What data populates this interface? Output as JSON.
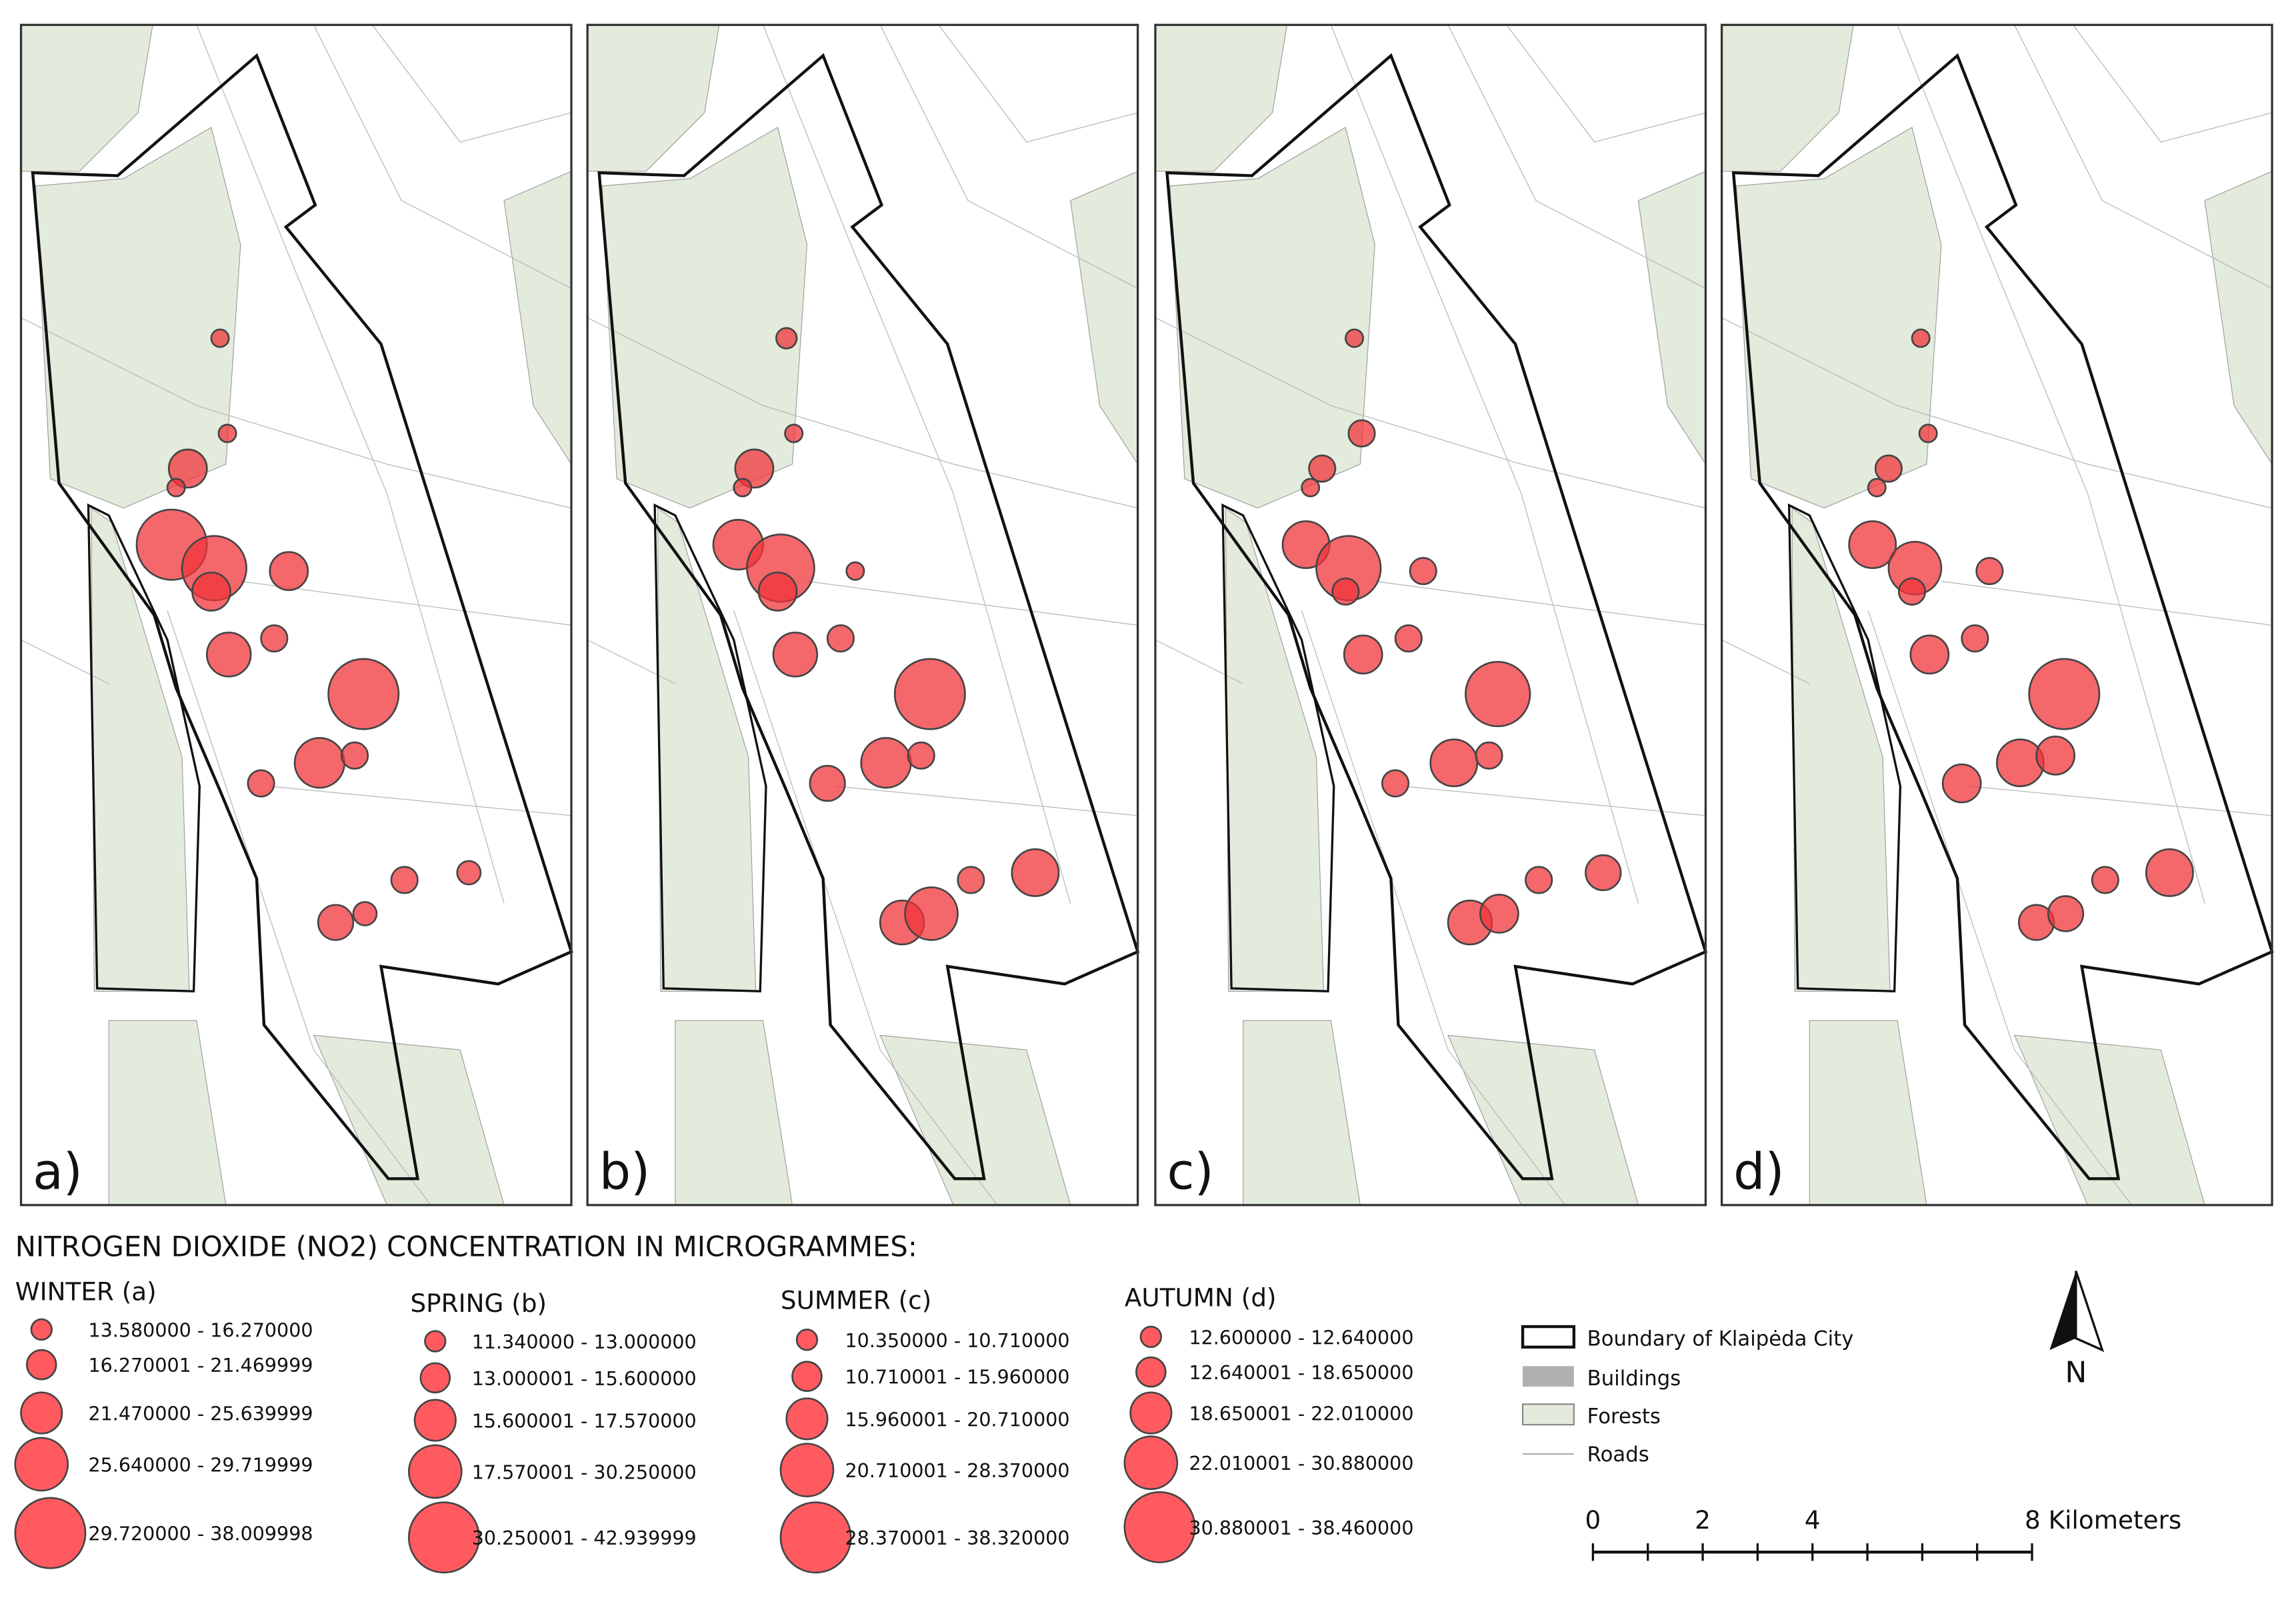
{
  "panels": [
    "a)",
    "b)",
    "c)",
    "d)"
  ],
  "legend": {
    "title": "NITROGEN DIOXIDE (NO2) CONCENTRATION IN MICROGRAMMES:",
    "seasons": [
      {
        "name": "WINTER (a)",
        "classes": [
          "13.580000 - 16.270000",
          "16.270001 - 21.469999",
          "21.470000 - 25.639999",
          "25.640000 - 29.719999",
          "29.720000 - 38.009998"
        ]
      },
      {
        "name": "SPRING (b)",
        "classes": [
          "11.340000 - 13.000000",
          "13.000001 - 15.600000",
          "15.600001 - 17.570000",
          "17.570001 - 30.250000",
          "30.250001 - 42.939999"
        ]
      },
      {
        "name": "SUMMER (c)",
        "classes": [
          "10.350000 - 10.710000",
          "10.710001 - 15.960000",
          "15.960001 - 20.710000",
          "20.710001 - 28.370000",
          "28.370001 - 38.320000"
        ]
      },
      {
        "name": "AUTUMN (d)",
        "classes": [
          "12.600000 - 12.640000",
          "12.640001 - 18.650000",
          "18.650001 - 22.010000",
          "22.010001 - 30.880000",
          "30.880001 - 38.460000"
        ]
      }
    ]
  },
  "layers": [
    "Boundary of Klaipėda City",
    "Buildings",
    "Forests",
    "Roads"
  ],
  "scale_bar": {
    "labels": [
      "0",
      "2",
      "4",
      "8 Kilometers"
    ]
  },
  "north": "N"
}
